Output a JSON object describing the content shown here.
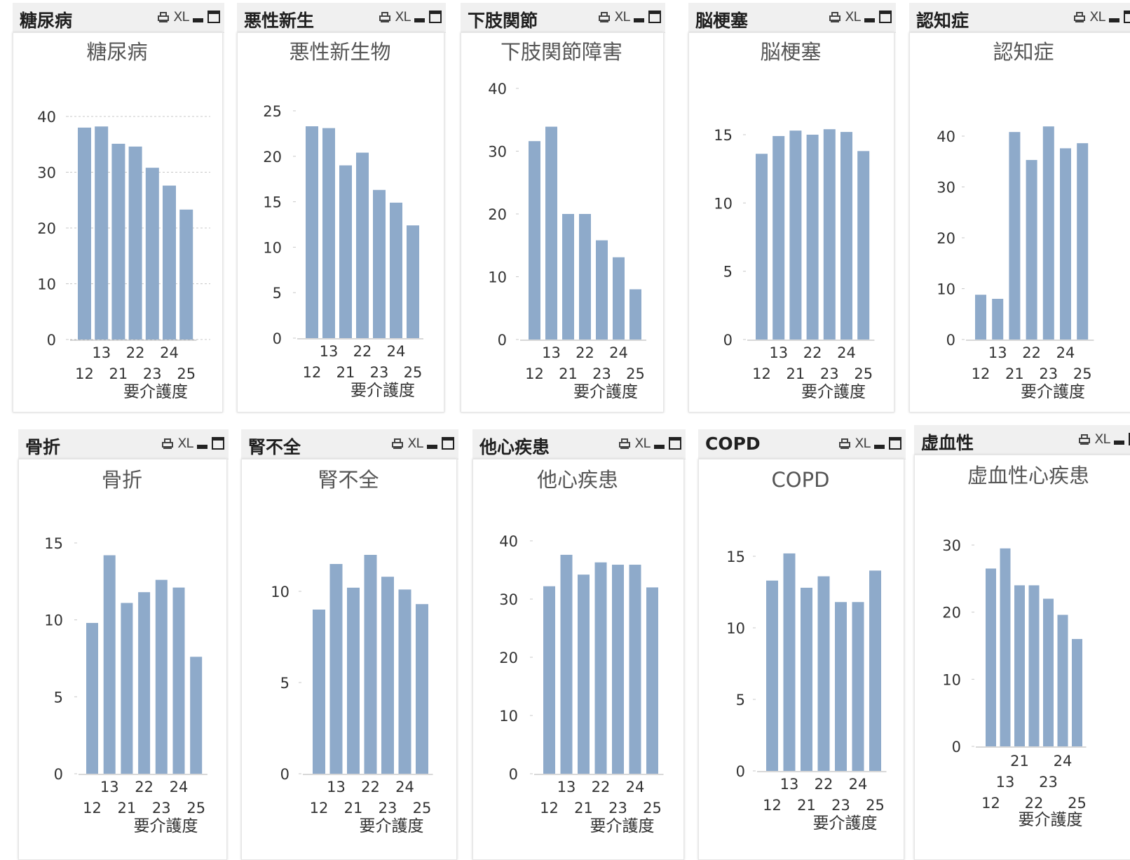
{
  "colors": {
    "bar": "#8eaaca",
    "axis": "#b0b0b0",
    "grid": "#c8c8c8"
  },
  "captionIcons": {
    "print": "printer-icon",
    "excel": "XL",
    "minimize": "minimize-icon",
    "maximize": "maximize-icon"
  },
  "charts": [
    {
      "caption": "糖尿病",
      "chart_data": {
        "type": "bar",
        "title": "糖尿病",
        "xlabel": "要介護度",
        "ylabel": "",
        "categories": [
          "12",
          "13",
          "21",
          "22",
          "23",
          "24",
          "25"
        ],
        "values": [
          38,
          38.2,
          35.1,
          34.6,
          30.8,
          27.6,
          23.3
        ],
        "ylim": [
          0,
          40
        ],
        "yticks": [
          0,
          10,
          20,
          30,
          40
        ],
        "grid": true
      }
    },
    {
      "caption": "悪性新生",
      "chart_data": {
        "type": "bar",
        "title": "悪性新生物",
        "xlabel": "要介護度",
        "ylabel": "",
        "categories": [
          "12",
          "13",
          "21",
          "22",
          "23",
          "24",
          "25"
        ],
        "values": [
          23.3,
          23.1,
          19,
          20.4,
          16.3,
          14.9,
          12.4
        ],
        "ylim": [
          0,
          25
        ],
        "yticks": [
          0,
          5,
          10,
          15,
          20,
          25
        ],
        "grid": false
      }
    },
    {
      "caption": "下肢関節",
      "chart_data": {
        "type": "bar",
        "title": "下肢関節障害",
        "xlabel": "要介護度",
        "ylabel": "",
        "categories": [
          "12",
          "13",
          "21",
          "22",
          "23",
          "24",
          "25"
        ],
        "values": [
          31.6,
          33.9,
          20,
          20,
          15.8,
          13.1,
          8
        ],
        "ylim": [
          0,
          40
        ],
        "yticks": [
          0,
          10,
          20,
          30,
          40
        ],
        "grid": false
      }
    },
    {
      "caption": "脳梗塞",
      "chart_data": {
        "type": "bar",
        "title": "脳梗塞",
        "xlabel": "要介護度",
        "ylabel": "",
        "categories": [
          "12",
          "13",
          "21",
          "22",
          "23",
          "24",
          "25"
        ],
        "values": [
          13.6,
          14.9,
          15.3,
          15,
          15.4,
          15.2,
          13.8
        ],
        "ylim": [
          0,
          15
        ],
        "yticks": [
          0,
          5,
          10,
          15
        ],
        "grid": false
      }
    },
    {
      "caption": "認知症",
      "chart_data": {
        "type": "bar",
        "title": "認知症",
        "xlabel": "要介護度",
        "ylabel": "",
        "categories": [
          "12",
          "13",
          "21",
          "22",
          "23",
          "24",
          "25"
        ],
        "values": [
          8.8,
          8,
          40.8,
          35.3,
          41.9,
          37.6,
          38.6
        ],
        "ylim": [
          0,
          40
        ],
        "yticks": [
          0,
          10,
          20,
          30,
          40
        ],
        "grid": false
      }
    },
    {
      "caption": "骨折",
      "chart_data": {
        "type": "bar",
        "title": "骨折",
        "xlabel": "要介護度",
        "ylabel": "",
        "categories": [
          "12",
          "13",
          "21",
          "22",
          "23",
          "24",
          "25"
        ],
        "values": [
          9.8,
          14.2,
          11.1,
          11.8,
          12.6,
          12.1,
          7.6
        ],
        "ylim": [
          0,
          15
        ],
        "yticks": [
          0,
          5,
          10,
          15
        ],
        "grid": false
      }
    },
    {
      "caption": "腎不全",
      "chart_data": {
        "type": "bar",
        "title": "腎不全",
        "xlabel": "要介護度",
        "ylabel": "",
        "categories": [
          "12",
          "13",
          "21",
          "22",
          "23",
          "24",
          "25"
        ],
        "values": [
          9,
          11.5,
          10.2,
          12,
          10.8,
          10.1,
          9.3
        ],
        "ylim": [
          0,
          10
        ],
        "yticks": [
          0,
          5,
          10
        ],
        "grid": false
      }
    },
    {
      "caption": "他心疾患",
      "chart_data": {
        "type": "bar",
        "title": "他心疾患",
        "xlabel": "要介護度",
        "ylabel": "",
        "categories": [
          "12",
          "13",
          "21",
          "22",
          "23",
          "24",
          "25"
        ],
        "values": [
          32.2,
          37.6,
          34.2,
          36.3,
          35.9,
          35.9,
          32
        ],
        "ylim": [
          0,
          40
        ],
        "yticks": [
          0,
          10,
          20,
          30,
          40
        ],
        "grid": false
      }
    },
    {
      "caption": "COPD",
      "chart_data": {
        "type": "bar",
        "title": "COPD",
        "xlabel": "要介護度",
        "ylabel": "",
        "categories": [
          "12",
          "13",
          "21",
          "22",
          "23",
          "24",
          "25"
        ],
        "values": [
          13.3,
          15.2,
          12.8,
          13.6,
          11.8,
          11.8,
          14
        ],
        "ylim": [
          0,
          15
        ],
        "yticks": [
          0,
          5,
          10,
          15
        ],
        "grid": false
      }
    },
    {
      "caption": "虚血性",
      "chart_data": {
        "type": "bar",
        "title": "虚血性心疾患",
        "xlabel": "要介護度",
        "ylabel": "",
        "categories": [
          "12",
          "13",
          "21",
          "22",
          "23",
          "24",
          "25"
        ],
        "values": [
          26.5,
          29.5,
          24,
          24,
          22,
          19.6,
          16
        ],
        "ylim": [
          0,
          30
        ],
        "yticks": [
          0,
          10,
          20,
          30
        ],
        "grid": false
      }
    }
  ]
}
